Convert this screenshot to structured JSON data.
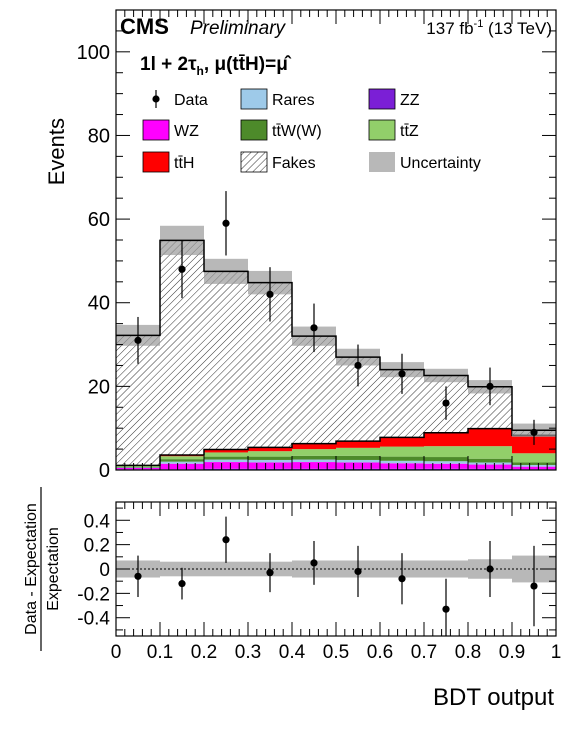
{
  "header": {
    "experiment": "CMS",
    "status": "Preliminary",
    "lumi_prefix": "137 fb",
    "lumi_exp": "-1",
    "lumi_suffix": " (13 TeV)",
    "channel_main": "1l + 2τ",
    "channel_sub": "h",
    "channel_mu": ",  μ(tt̄H)=μ̂"
  },
  "legend": [
    {
      "key": "data",
      "label": "Data",
      "style": "marker"
    },
    {
      "key": "rares",
      "label": "Rares",
      "color": "#9ecae9"
    },
    {
      "key": "zz",
      "label": "ZZ",
      "color": "#7b1fd6"
    },
    {
      "key": "wz",
      "label": "WZ",
      "color": "#ff00ff"
    },
    {
      "key": "ttw",
      "label": "tt̄W(W)",
      "color": "#4d8a2a"
    },
    {
      "key": "ttz",
      "label": "tt̄Z",
      "color": "#92cf6a"
    },
    {
      "key": "tth",
      "label": "tt̄H",
      "color": "#ff0000"
    },
    {
      "key": "fakes",
      "label": "Fakes",
      "style": "hatch"
    },
    {
      "key": "unc",
      "label": "Uncertainty",
      "color": "#b8b8b8"
    }
  ],
  "chart_data": [
    {
      "type": "bar",
      "stacked": true,
      "ylabel": "Events",
      "ylim": [
        0,
        110
      ],
      "yticks": [
        0,
        20,
        40,
        60,
        80,
        100
      ],
      "xlim": [
        0,
        1
      ],
      "bin_edges": [
        0,
        0.1,
        0.2,
        0.3,
        0.4,
        0.5,
        0.6,
        0.7,
        0.8,
        0.9,
        1.0
      ],
      "series": [
        {
          "name": "ZZ",
          "key": "zz",
          "values": [
            0.2,
            0.2,
            0.3,
            0.3,
            0.3,
            0.3,
            0.3,
            0.3,
            0.3,
            0.2
          ]
        },
        {
          "name": "WZ",
          "key": "wz",
          "values": [
            0.3,
            1.3,
            1.6,
            1.5,
            1.6,
            1.5,
            1.3,
            1.2,
            1.0,
            0.6
          ]
        },
        {
          "name": "Rares",
          "key": "rares",
          "values": [
            0.1,
            0.5,
            0.6,
            0.6,
            0.6,
            0.6,
            0.6,
            0.6,
            0.5,
            0.4
          ]
        },
        {
          "name": "tt̄W(W)",
          "key": "ttw",
          "values": [
            0.2,
            0.6,
            0.7,
            0.8,
            0.9,
            1.0,
            1.0,
            1.0,
            0.9,
            0.6
          ]
        },
        {
          "name": "tt̄Z",
          "key": "ttz",
          "values": [
            0.2,
            0.7,
            1.0,
            1.3,
            1.6,
            1.9,
            2.4,
            2.6,
            3.0,
            2.2
          ]
        },
        {
          "name": "tt̄H",
          "key": "tth",
          "values": [
            0.1,
            0.3,
            0.7,
            0.9,
            1.3,
            1.6,
            2.2,
            3.2,
            4.2,
            4.3
          ]
        },
        {
          "name": "Fakes",
          "key": "fakes",
          "values": [
            31.1,
            51.3,
            42.6,
            39.4,
            25.7,
            20.1,
            16.2,
            13.7,
            10.0,
            1.2
          ]
        }
      ],
      "uncertainty_band": {
        "name": "Uncertainty",
        "half_width": [
          2.5,
          3.5,
          3.0,
          2.8,
          2.3,
          2.0,
          1.8,
          1.6,
          1.6,
          1.6
        ]
      },
      "data": {
        "name": "Data",
        "x": [
          0.05,
          0.15,
          0.25,
          0.35,
          0.45,
          0.55,
          0.65,
          0.75,
          0.85,
          0.95
        ],
        "y": [
          31,
          48,
          59,
          42,
          34,
          25,
          23,
          16,
          20,
          9
        ],
        "err": [
          5.6,
          6.9,
          7.7,
          6.5,
          5.8,
          5.0,
          4.8,
          4.0,
          4.5,
          3.0
        ]
      }
    },
    {
      "type": "scatter",
      "xlabel": "BDT output",
      "ylabel_num": "Data - Expectation",
      "ylabel_den": "Expectation",
      "xlim": [
        0,
        1
      ],
      "ylim": [
        -0.55,
        0.55
      ],
      "yticks": [
        -0.4,
        -0.2,
        0,
        0.2,
        0.4
      ],
      "xticks": [
        0,
        0.1,
        0.2,
        0.3,
        0.4,
        0.5,
        0.6,
        0.7,
        0.8,
        0.9,
        1
      ],
      "x": [
        0.05,
        0.15,
        0.25,
        0.35,
        0.45,
        0.55,
        0.65,
        0.75,
        0.85,
        0.95
      ],
      "y": [
        -0.06,
        -0.12,
        0.24,
        -0.03,
        0.05,
        -0.02,
        -0.08,
        -0.33,
        0.0,
        -0.14
      ],
      "err": [
        0.17,
        0.13,
        0.19,
        0.16,
        0.18,
        0.21,
        0.21,
        0.25,
        0.23,
        0.33
      ],
      "band": [
        0.07,
        0.06,
        0.06,
        0.06,
        0.07,
        0.07,
        0.07,
        0.07,
        0.08,
        0.11
      ]
    }
  ]
}
